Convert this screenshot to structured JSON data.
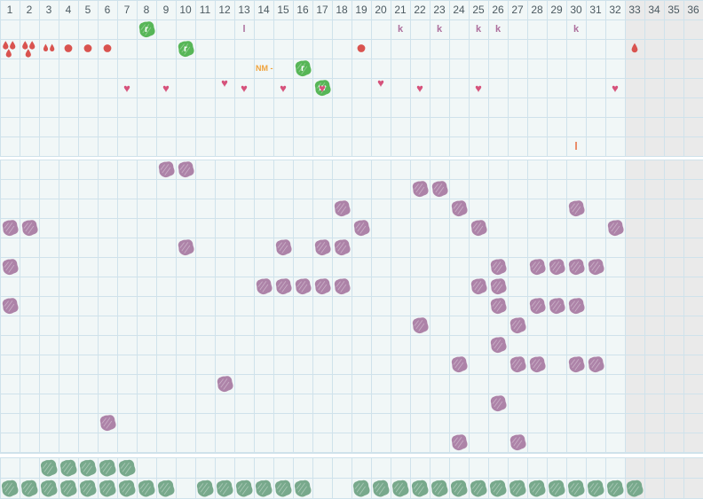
{
  "colors": {
    "cell_bg": "#f1f7f7",
    "inactive_bg": "#eaeaea",
    "grid_line": "#cfe2eb",
    "gap_bg": "#ffffff",
    "day_number": "#4c5a61",
    "stamp_green": "#57b657",
    "stamp_letter": "#ffffff",
    "blob_purple": "#ad83a8",
    "blob_sage": "#78a98c",
    "heart_pink": "#d6527b",
    "flow_red": "#d9534f",
    "letter_purple": "#ad6f9d",
    "note_orange": "#f0a33c",
    "mark_orange_red": "#e87a50"
  },
  "day_header": {
    "labels": [
      "1",
      "2",
      "3",
      "4",
      "5",
      "6",
      "7",
      "8",
      "9",
      "10",
      "11",
      "12",
      "13",
      "14",
      "15",
      "16",
      "17",
      "18",
      "19",
      "20",
      "21",
      "22",
      "23",
      "24",
      "25",
      "26",
      "27",
      "28",
      "29",
      "30",
      "31",
      "32",
      "33",
      "34",
      "35",
      "36"
    ],
    "inactive_from": 33
  },
  "top_section": {
    "row_count": 7,
    "stamps": [
      {
        "row": 1,
        "col": 8,
        "type": "green-stamp",
        "label": "r"
      },
      {
        "row": 1,
        "col": 10,
        "type": "green-stamp",
        "label": "r"
      },
      {
        "row": 1,
        "col": 13,
        "type": "letter",
        "label": "l"
      },
      {
        "row": 1,
        "col": 16,
        "type": "green-stamp",
        "label": "r"
      },
      {
        "row": 1,
        "col": 17,
        "type": "green-stamp",
        "label": "w"
      },
      {
        "row": 1,
        "col": 21,
        "type": "letter",
        "label": "k"
      },
      {
        "row": 1,
        "col": 23,
        "type": "letter",
        "label": "k"
      },
      {
        "row": 1,
        "col": 25,
        "type": "letter",
        "label": "k"
      },
      {
        "row": 1,
        "col": 26,
        "type": "letter",
        "label": "k"
      },
      {
        "row": 1,
        "col": 30,
        "type": "letter",
        "label": "k"
      },
      {
        "row": 2,
        "col": 1,
        "type": "flow-heavy"
      },
      {
        "row": 2,
        "col": 2,
        "type": "flow-heavy"
      },
      {
        "row": 2,
        "col": 3,
        "type": "flow-medium"
      },
      {
        "row": 2,
        "col": 4,
        "type": "flow-dot"
      },
      {
        "row": 2,
        "col": 5,
        "type": "flow-dot"
      },
      {
        "row": 2,
        "col": 6,
        "type": "flow-dot"
      },
      {
        "row": 2,
        "col": 19,
        "type": "flow-dot"
      },
      {
        "row": 2,
        "col": 33,
        "type": "flow-drop"
      },
      {
        "row": 3,
        "col": 14,
        "type": "note",
        "label": "NM -"
      },
      {
        "row": 4,
        "col": 7,
        "type": "heart"
      },
      {
        "row": 4,
        "col": 9,
        "type": "heart"
      },
      {
        "row": 4,
        "col": 12,
        "type": "heart",
        "offset": "high"
      },
      {
        "row": 4,
        "col": 13,
        "type": "heart"
      },
      {
        "row": 4,
        "col": 15,
        "type": "heart"
      },
      {
        "row": 4,
        "col": 17,
        "type": "heart"
      },
      {
        "row": 4,
        "col": 20,
        "type": "heart",
        "offset": "high"
      },
      {
        "row": 4,
        "col": 22,
        "type": "heart"
      },
      {
        "row": 4,
        "col": 25,
        "type": "heart"
      },
      {
        "row": 4,
        "col": 32,
        "type": "heart"
      },
      {
        "row": 7,
        "col": 30,
        "type": "letter-orange",
        "label": "l"
      }
    ]
  },
  "middle_section": {
    "row_count": 15,
    "rows": [
      {
        "row": 1,
        "cols": [
          9,
          10
        ]
      },
      {
        "row": 2,
        "cols": [
          22,
          23
        ]
      },
      {
        "row": 3,
        "cols": [
          18,
          24,
          30
        ]
      },
      {
        "row": 4,
        "cols": [
          1,
          2,
          19,
          25,
          32
        ]
      },
      {
        "row": 5,
        "cols": [
          10,
          15,
          17,
          18
        ]
      },
      {
        "row": 6,
        "cols": [
          1,
          26,
          28,
          29,
          30,
          31
        ]
      },
      {
        "row": 7,
        "cols": [
          14,
          15,
          16,
          17,
          18,
          25,
          26
        ]
      },
      {
        "row": 8,
        "cols": [
          1,
          26,
          28,
          29,
          30
        ]
      },
      {
        "row": 9,
        "cols": [
          22,
          27
        ]
      },
      {
        "row": 10,
        "cols": [
          26
        ]
      },
      {
        "row": 11,
        "cols": [
          24,
          27,
          28,
          30,
          31
        ]
      },
      {
        "row": 12,
        "cols": [
          12
        ]
      },
      {
        "row": 13,
        "cols": [
          26
        ]
      },
      {
        "row": 14,
        "cols": [
          6
        ]
      },
      {
        "row": 15,
        "cols": [
          24,
          27
        ]
      }
    ]
  },
  "bottom_section": {
    "rows": [
      {
        "row": 1,
        "cols": [
          3,
          4,
          5,
          6,
          7
        ]
      },
      {
        "row": 2,
        "cols": [
          1,
          2,
          3,
          4,
          5,
          6,
          7,
          8,
          9,
          11,
          12,
          13,
          14,
          15,
          16,
          19,
          20,
          21,
          22,
          23,
          24,
          25,
          26,
          27,
          28,
          29,
          30,
          31,
          32,
          33
        ]
      }
    ]
  }
}
